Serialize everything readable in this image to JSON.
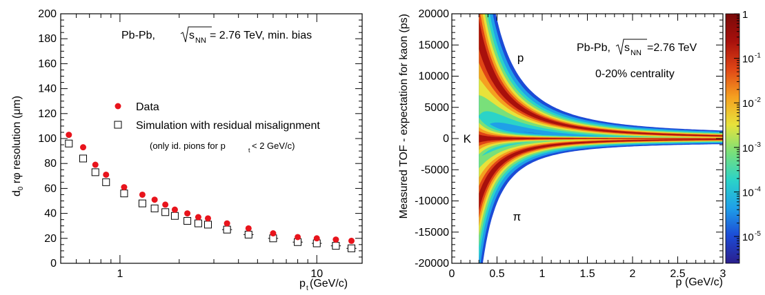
{
  "chart_data": [
    {
      "type": "scatter",
      "panel": "left",
      "x_scale": "log",
      "xlim": [
        0.5,
        17
      ],
      "ylim": [
        0,
        200
      ],
      "xlabel_main": "p",
      "xlabel_sub": "t",
      "xlabel_unit": " (GeV/c)",
      "ylabel_main": "d",
      "ylabel_sub": "0",
      "ylabel_rest": " rφ resolution (μm)",
      "x_ticks": [
        1,
        10
      ],
      "x_tick_labels": [
        "1",
        "10"
      ],
      "y_ticks": [
        0,
        20,
        40,
        60,
        80,
        100,
        120,
        140,
        160,
        180,
        200
      ],
      "y_tick_labels": [
        "0",
        "20",
        "40",
        "60",
        "80",
        "100",
        "120",
        "140",
        "160",
        "180",
        "200"
      ],
      "annotation": {
        "prefix": "Pb-Pb,",
        "root": "s",
        "root_sub": "NN",
        "suffix": " = 2.76 TeV, min. bias"
      },
      "note": {
        "prefix": "(only id. pions for p",
        "sub": "t",
        "suffix": " < 2 GeV/c)"
      },
      "legend_position": "middle",
      "series": [
        {
          "name": "Data",
          "marker": "filled-circle",
          "color": "#e8141c",
          "x": [
            0.55,
            0.65,
            0.75,
            0.85,
            1.05,
            1.3,
            1.5,
            1.7,
            1.9,
            2.2,
            2.5,
            2.8,
            3.5,
            4.5,
            6,
            8,
            10,
            12.5,
            15
          ],
          "y": [
            103,
            93,
            79,
            71,
            61,
            55,
            51,
            47,
            43,
            40,
            37,
            36,
            32,
            28,
            24,
            21,
            20,
            19,
            18
          ]
        },
        {
          "name": "Simulation with residual misalignment",
          "marker": "open-square",
          "color": "#000000",
          "x": [
            0.55,
            0.65,
            0.75,
            0.85,
            1.05,
            1.3,
            1.5,
            1.7,
            1.9,
            2.2,
            2.5,
            2.8,
            3.5,
            4.5,
            6,
            8,
            10,
            12.5,
            15
          ],
          "y": [
            96,
            84,
            73,
            65,
            56,
            48,
            44,
            41,
            38,
            34,
            32,
            31,
            27,
            23,
            20,
            17,
            16,
            14,
            12
          ]
        }
      ]
    },
    {
      "type": "heatmap",
      "panel": "right",
      "xlim": [
        0,
        3
      ],
      "ylim": [
        -20000,
        20000
      ],
      "xlabel": "p (GeV/c)",
      "ylabel": "Measured TOF - expectation for kaon (ps)",
      "x_ticks": [
        0,
        0.5,
        1,
        1.5,
        2,
        2.5,
        3
      ],
      "x_tick_labels": [
        "0",
        "0.5",
        "1",
        "1.5",
        "2",
        "2.5",
        "3"
      ],
      "y_ticks": [
        -20000,
        -15000,
        -10000,
        -5000,
        0,
        5000,
        10000,
        15000,
        20000
      ],
      "y_tick_labels": [
        "-20000",
        "-15000",
        "-10000",
        "-5000",
        "0",
        "5000",
        "10000",
        "15000",
        "20000"
      ],
      "z_scale": "log",
      "zlim": [
        2.5e-06,
        1
      ],
      "z_ticks": [
        1,
        0.1,
        0.01,
        0.001,
        0.0001,
        1e-05
      ],
      "z_tick_base": [
        "1",
        "10",
        "10",
        "10",
        "10",
        "10"
      ],
      "z_tick_exp": [
        "",
        "-1",
        "-2",
        "-3",
        "-4",
        "-5"
      ],
      "annotation": {
        "prefix": "Pb-Pb, ",
        "root": "s",
        "root_sub": "NN",
        "suffix": "=2.76 TeV"
      },
      "centrality_label": "0-20% centrality",
      "band_labels": [
        {
          "text": "p",
          "x": 0.76,
          "y": 13000
        },
        {
          "text": "K",
          "x": 0.17,
          "y": 0
        },
        {
          "text": "π",
          "x": 0.72,
          "y": -12500
        }
      ],
      "palette": [
        "#2a1e8c",
        "#1c4bd6",
        "#1fa0e8",
        "#2bd3c8",
        "#79e07a",
        "#e8e23a",
        "#f5a020",
        "#e04616",
        "#a8100c",
        "#7a0a08"
      ]
    }
  ]
}
